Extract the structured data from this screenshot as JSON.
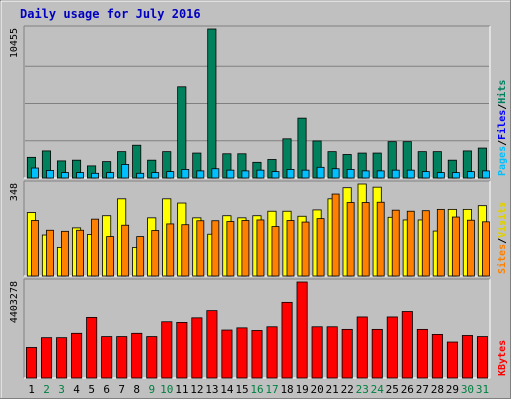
{
  "chart_data": {
    "type": "bar",
    "title": "Daily usage for July 2016",
    "categories": [
      "1",
      "2",
      "3",
      "4",
      "5",
      "6",
      "7",
      "8",
      "9",
      "10",
      "11",
      "12",
      "13",
      "14",
      "15",
      "16",
      "17",
      "18",
      "19",
      "20",
      "21",
      "22",
      "23",
      "24",
      "25",
      "26",
      "27",
      "28",
      "29",
      "30",
      "31"
    ],
    "weekend_days": [
      "2",
      "3",
      "9",
      "10",
      "16",
      "17",
      "23",
      "24",
      "30",
      "31"
    ],
    "panels": [
      {
        "id": "top",
        "max_label": "10455",
        "ymax": 10455,
        "legend": [
          {
            "text": "Hits",
            "color": "#007f5f"
          },
          {
            "text": "/",
            "color": "#000000"
          },
          {
            "text": "Files",
            "color": "#0000ff"
          },
          {
            "text": "/",
            "color": "#000000"
          },
          {
            "text": "Pages",
            "color": "#00c0ff"
          }
        ],
        "series": [
          {
            "name": "Hits",
            "color": "#00805c",
            "values": [
              1450,
              1900,
              1200,
              1250,
              850,
              1150,
              1850,
              2300,
              1250,
              1850,
              6400,
              1750,
              10455,
              1700,
              1700,
              1100,
              1300,
              2750,
              4200,
              2600,
              1850,
              1650,
              1750,
              1750,
              2550,
              2550,
              1850,
              1850,
              1250,
              1900,
              2100
            ]
          },
          {
            "name": "Pages",
            "color": "#00c0ff",
            "values": [
              700,
              530,
              380,
              380,
              330,
              380,
              950,
              330,
              380,
              450,
              600,
              500,
              650,
              550,
              500,
              550,
              450,
              600,
              550,
              750,
              650,
              600,
              500,
              500,
              550,
              550,
              450,
              380,
              380,
              450,
              500
            ]
          }
        ]
      },
      {
        "id": "middle",
        "max_label": "348",
        "ymax": 348,
        "legend": [
          {
            "text": "Visits",
            "color": "#e0d000"
          },
          {
            "text": "/",
            "color": "#000000"
          },
          {
            "text": "Sites",
            "color": "#ff8000"
          }
        ],
        "series": [
          {
            "name": "Visits",
            "color": "#ffff00",
            "values": [
              240,
              155,
              108,
              182,
              157,
              228,
              292,
              108,
              220,
              292,
              276,
              220,
              158,
              228,
              220,
              228,
              245,
              245,
              226,
              250,
              292,
              334,
              348,
              336,
              222,
              212,
              212,
              170,
              252,
              252,
              266
            ]
          },
          {
            "name": "Sites",
            "color": "#ff8000",
            "values": [
              210,
              173,
              169,
              173,
              215,
              149,
              192,
              149,
              172,
              197,
              194,
              209,
              209,
              206,
              210,
              212,
              187,
              210,
              204,
              217,
              310,
              278,
              278,
              279,
              249,
              245,
              247,
              252,
              223,
              211,
              205
            ]
          }
        ]
      },
      {
        "id": "bottom",
        "max_label": "4403278",
        "ymax": 4403278,
        "legend": [
          {
            "text": "KBytes",
            "color": "#ff0000"
          }
        ],
        "series": [
          {
            "name": "KBytes",
            "color": "#ff0000",
            "values": [
              1400000,
              1850000,
              1850000,
              2050000,
              2780000,
              1900000,
              1900000,
              2050000,
              1900000,
              2580000,
              2550000,
              2760000,
              3090000,
              2200000,
              2300000,
              2180000,
              2350000,
              3470000,
              4403278,
              2350000,
              2350000,
              2230000,
              2800000,
              2230000,
              2800000,
              3050000,
              2230000,
              2000000,
              1650000,
              1950000,
              1900000
            ]
          }
        ]
      }
    ]
  }
}
